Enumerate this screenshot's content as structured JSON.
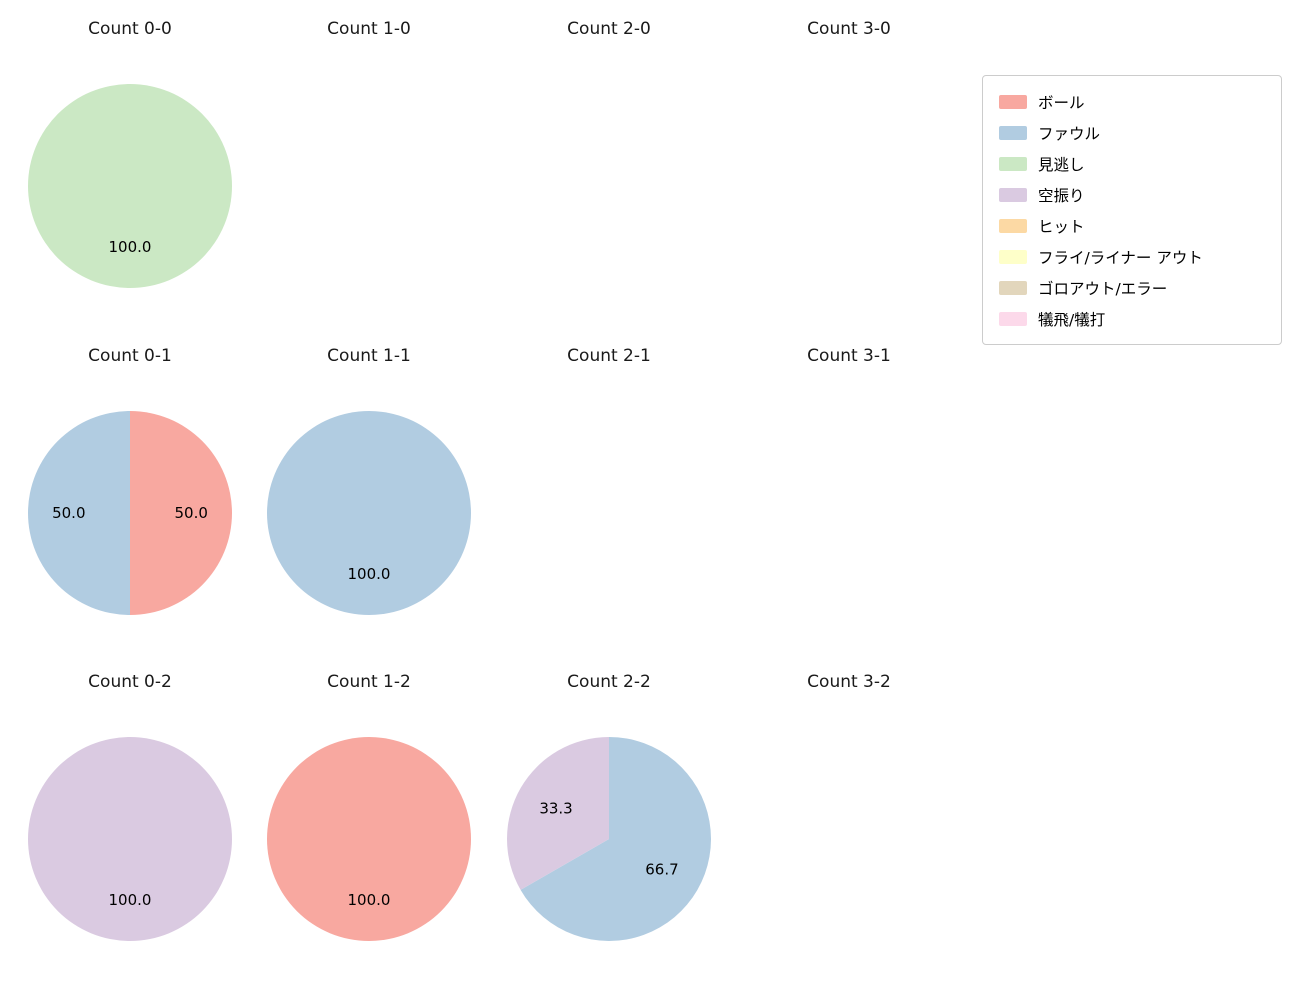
{
  "page": {
    "background": "#ffffff"
  },
  "legend": {
    "items": [
      {
        "label": "ボール",
        "color": "#f8a8a0"
      },
      {
        "label": "ファウル",
        "color": "#b1cce1"
      },
      {
        "label": "見逃し",
        "color": "#cbe8c4"
      },
      {
        "label": "空振り",
        "color": "#dacae1"
      },
      {
        "label": "ヒット",
        "color": "#fcd9a4"
      },
      {
        "label": "フライ/ライナー アウト",
        "color": "#feffc9"
      },
      {
        "label": "ゴロアウト/エラー",
        "color": "#e2d6bc"
      },
      {
        "label": "犠飛/犠打",
        "color": "#fcd9ea"
      }
    ]
  },
  "chart_data": [
    {
      "type": "pie",
      "title": "Count 0-0",
      "startangle": 90,
      "counterclock": false,
      "slices": [
        {
          "label": "見逃し",
          "value": 100.0,
          "pct": "100.0",
          "color": "#cbe8c4"
        }
      ]
    },
    {
      "type": "pie",
      "title": "Count 1-0",
      "slices": []
    },
    {
      "type": "pie",
      "title": "Count 2-0",
      "slices": []
    },
    {
      "type": "pie",
      "title": "Count 3-0",
      "slices": []
    },
    {
      "type": "pie",
      "title": "Count 0-1",
      "startangle": 90,
      "counterclock": false,
      "slices": [
        {
          "label": "ボール",
          "value": 50.0,
          "pct": "50.0",
          "color": "#f8a8a0"
        },
        {
          "label": "ファウル",
          "value": 50.0,
          "pct": "50.0",
          "color": "#b1cce1"
        }
      ]
    },
    {
      "type": "pie",
      "title": "Count 1-1",
      "startangle": 90,
      "counterclock": false,
      "slices": [
        {
          "label": "ファウル",
          "value": 100.0,
          "pct": "100.0",
          "color": "#b1cce1"
        }
      ]
    },
    {
      "type": "pie",
      "title": "Count 2-1",
      "slices": []
    },
    {
      "type": "pie",
      "title": "Count 3-1",
      "slices": []
    },
    {
      "type": "pie",
      "title": "Count 0-2",
      "startangle": 90,
      "counterclock": false,
      "slices": [
        {
          "label": "空振り",
          "value": 100.0,
          "pct": "100.0",
          "color": "#dacae1"
        }
      ]
    },
    {
      "type": "pie",
      "title": "Count 1-2",
      "startangle": 90,
      "counterclock": false,
      "slices": [
        {
          "label": "ボール",
          "value": 100.0,
          "pct": "100.0",
          "color": "#f8a8a0"
        }
      ]
    },
    {
      "type": "pie",
      "title": "Count 2-2",
      "startangle": 90,
      "counterclock": false,
      "slices": [
        {
          "label": "ファウル",
          "value": 66.7,
          "pct": "66.7",
          "color": "#b1cce1"
        },
        {
          "label": "空振り",
          "value": 33.3,
          "pct": "33.3",
          "color": "#dacae1"
        }
      ]
    },
    {
      "type": "pie",
      "title": "Count 3-2",
      "slices": []
    }
  ]
}
